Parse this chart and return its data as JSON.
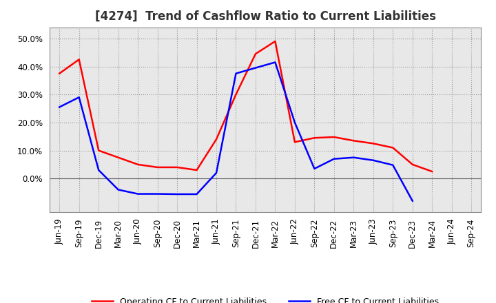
{
  "title": "[4274]  Trend of Cashflow Ratio to Current Liabilities",
  "labels": [
    "Jun-19",
    "Sep-19",
    "Dec-19",
    "Mar-20",
    "Jun-20",
    "Sep-20",
    "Dec-20",
    "Mar-21",
    "Jun-21",
    "Sep-21",
    "Dec-21",
    "Mar-22",
    "Jun-22",
    "Sep-22",
    "Dec-22",
    "Mar-23",
    "Jun-23",
    "Sep-23",
    "Dec-23",
    "Mar-24",
    "Jun-24",
    "Sep-24"
  ],
  "operating_cf": [
    0.375,
    0.425,
    0.1,
    0.075,
    0.05,
    0.04,
    0.04,
    0.03,
    0.14,
    0.3,
    0.445,
    0.49,
    0.13,
    0.145,
    0.148,
    0.135,
    0.125,
    0.11,
    0.05,
    0.025,
    null,
    null
  ],
  "free_cf": [
    0.255,
    0.29,
    0.03,
    -0.04,
    -0.055,
    -0.055,
    -0.056,
    -0.056,
    0.02,
    0.375,
    0.395,
    0.415,
    0.2,
    0.035,
    0.07,
    0.075,
    0.065,
    0.048,
    -0.08,
    null,
    null,
    null
  ],
  "operating_color": "#FF0000",
  "free_color": "#0000FF",
  "ylim_low": -0.12,
  "ylim_high": 0.54,
  "yticks": [
    0.0,
    0.1,
    0.2,
    0.3,
    0.4,
    0.5
  ],
  "plot_bg_color": "#e8e8e8",
  "fig_bg_color": "#ffffff",
  "grid_color": "#999999",
  "title_color": "#333333",
  "legend_operating": "Operating CF to Current Liabilities",
  "legend_free": "Free CF to Current Liabilities",
  "title_fontsize": 12,
  "tick_fontsize": 8.5,
  "ytick_fontsize": 8.5,
  "linewidth": 1.8
}
